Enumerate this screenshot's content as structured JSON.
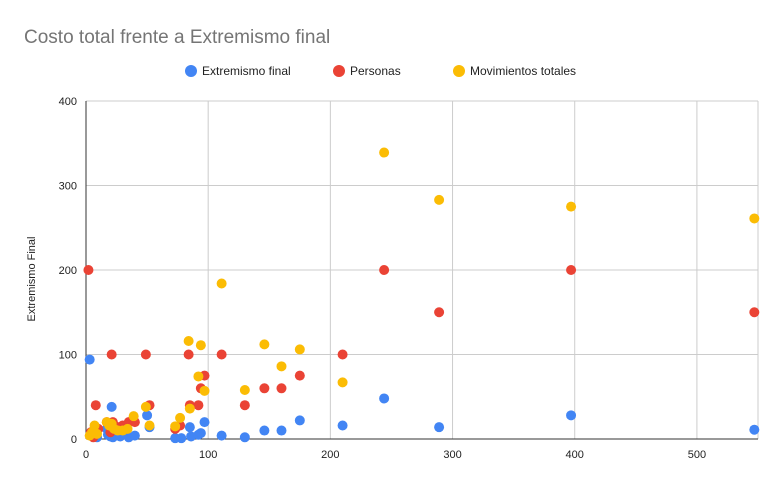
{
  "chart_data": {
    "type": "scatter",
    "title": "Costo total frente a Extremismo final",
    "xlabel": "",
    "ylabel": "Extremismo Final",
    "xlim": [
      0,
      550
    ],
    "ylim": [
      0,
      400
    ],
    "x_ticks": [
      "0",
      "100",
      "200",
      "300",
      "400",
      "500"
    ],
    "y_ticks": [
      "0",
      "100",
      "200",
      "300",
      "400"
    ],
    "legend_position": "top-center",
    "grid": true,
    "series": [
      {
        "name": "Extremismo final",
        "color": "#4285F4",
        "points": [
          [
            3,
            94
          ],
          [
            5,
            6
          ],
          [
            7,
            3
          ],
          [
            9,
            2
          ],
          [
            17,
            12
          ],
          [
            18,
            5
          ],
          [
            20,
            3
          ],
          [
            21,
            38
          ],
          [
            22,
            2
          ],
          [
            24,
            8
          ],
          [
            28,
            3
          ],
          [
            32,
            6
          ],
          [
            35,
            2
          ],
          [
            40,
            4
          ],
          [
            50,
            28
          ],
          [
            52,
            14
          ],
          [
            73,
            1
          ],
          [
            78,
            1
          ],
          [
            85,
            14
          ],
          [
            86,
            3
          ],
          [
            92,
            5
          ],
          [
            94,
            7
          ],
          [
            97,
            20
          ],
          [
            111,
            4
          ],
          [
            130,
            2
          ],
          [
            146,
            10
          ],
          [
            160,
            10
          ],
          [
            175,
            22
          ],
          [
            210,
            16
          ],
          [
            244,
            48
          ],
          [
            289,
            14
          ],
          [
            397,
            28
          ],
          [
            547,
            11
          ]
        ]
      },
      {
        "name": "Personas",
        "color": "#EA4335",
        "points": [
          [
            2,
            200
          ],
          [
            4,
            8
          ],
          [
            6,
            2
          ],
          [
            8,
            40
          ],
          [
            10,
            12
          ],
          [
            17,
            20
          ],
          [
            20,
            8
          ],
          [
            21,
            100
          ],
          [
            22,
            20
          ],
          [
            26,
            14
          ],
          [
            30,
            16
          ],
          [
            35,
            20
          ],
          [
            40,
            20
          ],
          [
            49,
            100
          ],
          [
            52,
            40
          ],
          [
            73,
            12
          ],
          [
            77,
            16
          ],
          [
            84,
            100
          ],
          [
            85,
            40
          ],
          [
            92,
            40
          ],
          [
            94,
            60
          ],
          [
            97,
            75
          ],
          [
            111,
            100
          ],
          [
            130,
            40
          ],
          [
            146,
            60
          ],
          [
            160,
            60
          ],
          [
            175,
            75
          ],
          [
            210,
            100
          ],
          [
            244,
            200
          ],
          [
            289,
            150
          ],
          [
            397,
            200
          ],
          [
            547,
            150
          ]
        ]
      },
      {
        "name": "Movimientos totales",
        "color": "#FBBC04",
        "points": [
          [
            3,
            4
          ],
          [
            5,
            8
          ],
          [
            7,
            16
          ],
          [
            9,
            6
          ],
          [
            17,
            20
          ],
          [
            19,
            16
          ],
          [
            21,
            18
          ],
          [
            23,
            12
          ],
          [
            26,
            10
          ],
          [
            30,
            10
          ],
          [
            34,
            12
          ],
          [
            39,
            27
          ],
          [
            49,
            38
          ],
          [
            52,
            16
          ],
          [
            73,
            15
          ],
          [
            77,
            25
          ],
          [
            84,
            116
          ],
          [
            85,
            36
          ],
          [
            92,
            74
          ],
          [
            94,
            111
          ],
          [
            97,
            57
          ],
          [
            111,
            184
          ],
          [
            130,
            58
          ],
          [
            146,
            112
          ],
          [
            160,
            86
          ],
          [
            175,
            106
          ],
          [
            210,
            67
          ],
          [
            244,
            339
          ],
          [
            289,
            283
          ],
          [
            397,
            275
          ],
          [
            547,
            261
          ]
        ]
      }
    ]
  }
}
